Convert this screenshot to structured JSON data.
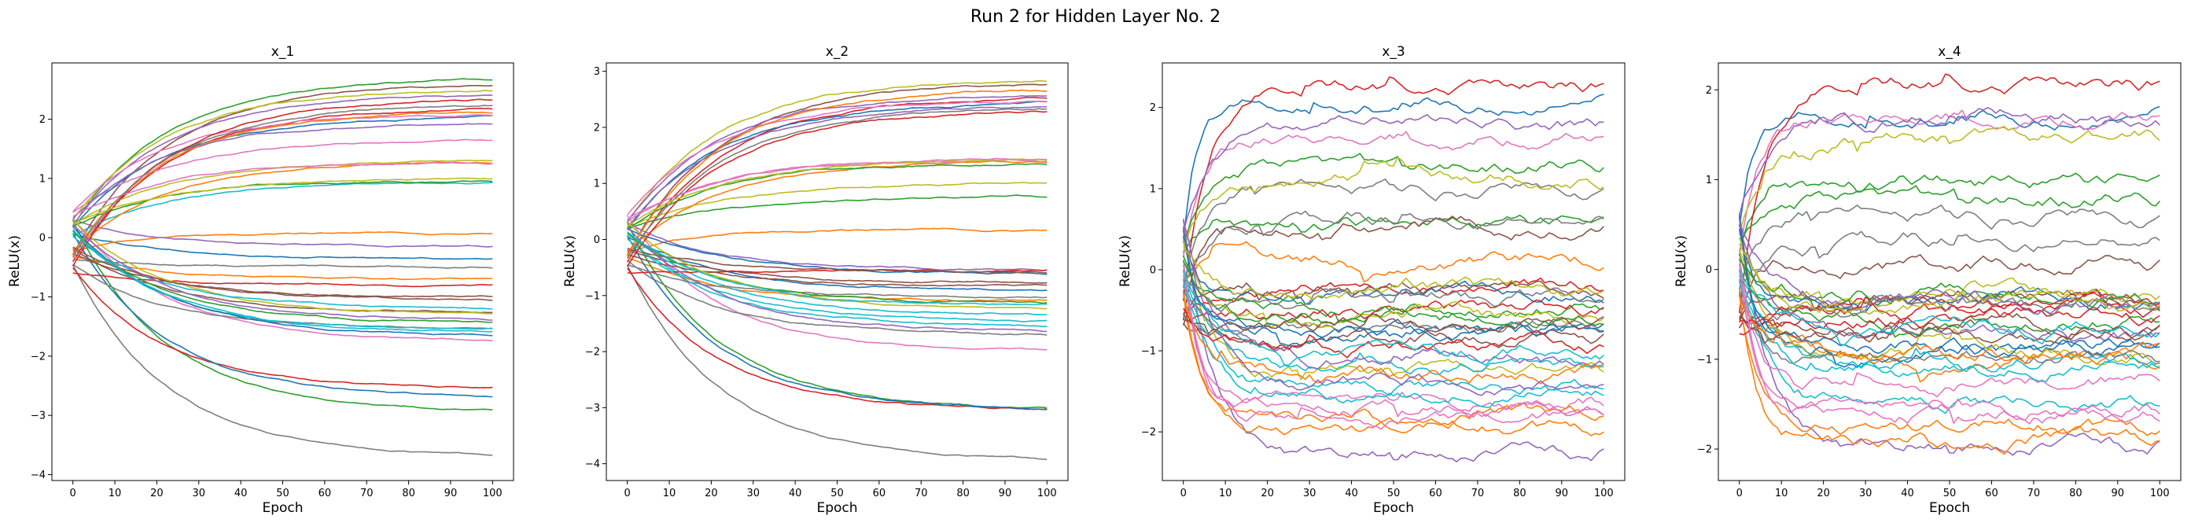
{
  "figure": {
    "suptitle": "Run 2 for Hidden Layer No. 2"
  },
  "palette": [
    "#1f77b4",
    "#ff7f0e",
    "#2ca02c",
    "#d62728",
    "#9467bd",
    "#8c564b",
    "#e377c2",
    "#7f7f7f",
    "#bcbd22",
    "#17becf"
  ],
  "chart_data": [
    {
      "type": "line",
      "title": "x_1",
      "xlabel": "Epoch",
      "ylabel": "ReLU(x)",
      "xlim": [
        -5,
        105
      ],
      "ylim": [
        -4.1,
        2.95
      ],
      "xticks": [
        0,
        10,
        20,
        30,
        40,
        50,
        60,
        70,
        80,
        90,
        100
      ],
      "yticks": [
        -4,
        -3,
        -2,
        -1,
        0,
        1,
        2
      ],
      "grid": false,
      "style": "smooth",
      "noise": 0.012,
      "epochs": 100,
      "starts": [
        0.1,
        -0.3,
        0.2,
        -0.5,
        0.3,
        -0.2,
        0.4,
        -0.4,
        0.25,
        0.05
      ],
      "finals": [
        -0.35,
        0.08,
        2.68,
        2.2,
        -0.15,
        2.6,
        1.65,
        -3.7,
        2.5,
        0.95,
        2.05,
        -0.7,
        -2.95,
        -2.55,
        2.42,
        -1.25,
        -1.75,
        -0.5,
        1.3,
        -1.6,
        -2.7,
        1.28,
        0.98,
        -0.8,
        1.95,
        -1.0,
        2.1,
        -1.55,
        -1.3,
        -1.2,
        -1.65,
        2.15,
        -1.45,
        2.35,
        -1.4,
        -1.05,
        1.27,
        2.25,
        1.0,
        -1.58
      ]
    },
    {
      "type": "line",
      "title": "x_2",
      "xlabel": "Epoch",
      "ylabel": "ReLU(x)",
      "xlim": [
        -5,
        105
      ],
      "ylim": [
        -4.3,
        3.15
      ],
      "xticks": [
        0,
        10,
        20,
        30,
        40,
        50,
        60,
        70,
        80,
        90,
        100
      ],
      "yticks": [
        -4,
        -3,
        -2,
        -1,
        0,
        1,
        2,
        3
      ],
      "grid": false,
      "style": "smooth",
      "noise": 0.015,
      "epochs": 100,
      "starts": [
        0.1,
        -0.3,
        0.2,
        -0.5,
        0.3,
        -0.2,
        0.4,
        -0.4,
        0.25,
        0.05
      ],
      "finals": [
        -0.9,
        0.18,
        0.75,
        2.55,
        -0.55,
        2.8,
        -2.0,
        -3.95,
        2.85,
        -1.45,
        2.45,
        -1.1,
        -3.05,
        -3.05,
        2.38,
        -0.75,
        1.45,
        -1.7,
        1.0,
        -1.35,
        -3.05,
        1.4,
        1.38,
        -0.55,
        2.6,
        -0.82,
        2.5,
        -1.05,
        -1.25,
        -1.55,
        -0.6,
        2.7,
        -1.15,
        2.3,
        -1.65,
        -0.58,
        1.42,
        2.35,
        1.43,
        -1.2
      ]
    },
    {
      "type": "line",
      "title": "x_3",
      "xlabel": "Epoch",
      "ylabel": "ReLU(x)",
      "xlim": [
        -5,
        105
      ],
      "ylim": [
        -2.6,
        2.55
      ],
      "xticks": [
        0,
        10,
        20,
        30,
        40,
        50,
        60,
        70,
        80,
        90,
        100
      ],
      "yticks": [
        -2,
        -1,
        0,
        1,
        2
      ],
      "grid": false,
      "style": "jumpy",
      "noise": 0.035,
      "epochs": 100,
      "starts": [
        0.4,
        -0.3,
        0.2,
        -0.5,
        0.6,
        -0.6,
        0.1,
        -0.2,
        0.3,
        -0.1
      ],
      "finals": [
        2.05,
        0.1,
        0.55,
        2.25,
        -2.25,
        -0.85,
        1.65,
        0.95,
        -1.25,
        -1.45,
        -0.75,
        -1.95,
        1.3,
        -0.22,
        1.78,
        0.55,
        -1.62,
        0.6,
        1.15,
        -1.2,
        -0.3,
        -1.8,
        -0.45,
        -0.5,
        -1.1,
        -0.2,
        -1.8,
        -0.75,
        -0.6,
        -1.55,
        -0.75,
        -1.3,
        -0.55,
        -0.95,
        -1.35,
        -0.65,
        -1.7,
        -0.35,
        -0.28,
        -1.0
      ]
    },
    {
      "type": "line",
      "title": "x_4",
      "xlabel": "Epoch",
      "ylabel": "ReLU(x)",
      "xlim": [
        -5,
        105
      ],
      "ylim": [
        -2.35,
        2.3
      ],
      "xticks": [
        0,
        10,
        20,
        30,
        40,
        50,
        60,
        70,
        80,
        90,
        100
      ],
      "yticks": [
        -2,
        -1,
        0,
        1,
        2
      ],
      "grid": false,
      "style": "jumpy",
      "noise": 0.035,
      "epochs": 100,
      "starts": [
        0.5,
        -0.3,
        0.2,
        -0.6,
        0.6,
        -0.5,
        0.1,
        -0.2,
        0.3,
        -0.1
      ],
      "finals": [
        1.7,
        -1.0,
        0.95,
        2.05,
        -1.95,
        0.05,
        1.72,
        0.55,
        1.45,
        -1.5,
        -0.9,
        -1.75,
        0.8,
        -0.35,
        -0.75,
        -0.6,
        -1.55,
        0.3,
        -0.9,
        -1.05,
        -0.35,
        -1.9,
        -0.55,
        -0.55,
        1.68,
        -0.28,
        -1.25,
        -1.02,
        -0.3,
        -1.1,
        -0.85,
        -0.95,
        -0.25,
        -0.45,
        -0.3,
        -0.7,
        -1.6,
        -0.4,
        -0.42,
        -0.65
      ]
    }
  ]
}
